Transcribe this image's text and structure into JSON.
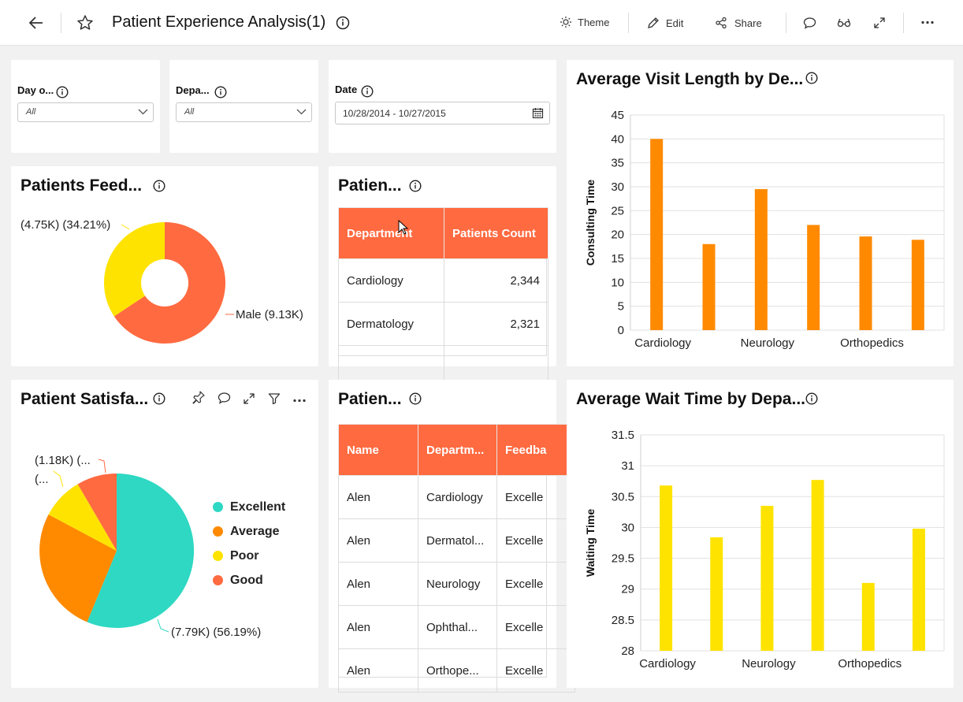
{
  "header": {
    "title": "Patient Experience Analysis(1)",
    "theme_label": "Theme",
    "edit_label": "Edit",
    "share_label": "Share"
  },
  "filters": {
    "day": {
      "label": "Day o...",
      "value": "All"
    },
    "department": {
      "label": "Depa...",
      "value": "All"
    },
    "date": {
      "label": "Date",
      "value": "10/28/2014 - 10/27/2015"
    }
  },
  "feedback_pie": {
    "title": "Patients Feed...",
    "labels": [
      "(4.75K) (34.21%)",
      "Male (9.13K)"
    ],
    "colors": {
      "female": "#ffe300",
      "male": "#ff6a40"
    }
  },
  "patients_count_table": {
    "title": "Patien...",
    "headers": [
      "Department",
      "Patients Count"
    ],
    "rows": [
      [
        "Cardiology",
        "2,344"
      ],
      [
        "Dermatology",
        "2,321"
      ]
    ]
  },
  "visit_length_chart": {
    "title": "Average Visit Length by De...",
    "chart_data": {
      "type": "bar",
      "title": "Average Visit Length by De...",
      "xlabel": "",
      "ylabel": "Consulting Time",
      "ylim": [
        0,
        45
      ],
      "yticks": [
        "0",
        "5",
        "10",
        "15",
        "20",
        "25",
        "30",
        "35",
        "40",
        "45"
      ],
      "x_tick_labels": [
        "Cardiology",
        "Neurology",
        "Orthopedics"
      ],
      "values": [
        40,
        18,
        29.5,
        22,
        19.6,
        18.9
      ],
      "color": "#ff8a00"
    }
  },
  "satisfaction_pie": {
    "title": "Patient Satisfa...",
    "labels": [
      "(1.18K) (...",
      "(...",
      "(7.79K) (56.19%)"
    ],
    "legend": [
      {
        "name": "Excellent",
        "color": "#2ed8c3"
      },
      {
        "name": "Average",
        "color": "#ff8a00"
      },
      {
        "name": "Poor",
        "color": "#ffe300"
      },
      {
        "name": "Good",
        "color": "#ff6a40"
      }
    ]
  },
  "patients_table": {
    "title": "Patien...",
    "headers": [
      "Name",
      "Departm...",
      "Feedba"
    ],
    "rows": [
      [
        "Alen",
        "Cardiology",
        "Excelle"
      ],
      [
        "Alen",
        "Dermatol...",
        "Excelle"
      ],
      [
        "Alen",
        "Neurology",
        "Excelle"
      ],
      [
        "Alen",
        "Ophthal...",
        "Excelle"
      ],
      [
        "Alen",
        "Orthope...",
        "Excelle"
      ]
    ]
  },
  "wait_time_chart": {
    "title": "Average Wait Time by Depa...",
    "chart_data": {
      "type": "bar",
      "title": "Average Wait Time by Depa...",
      "xlabel": "",
      "ylabel": "Waiting Time",
      "ylim": [
        28,
        31.5
      ],
      "yticks": [
        "28",
        "28.5",
        "29",
        "29.5",
        "30",
        "30.5",
        "31",
        "31.5"
      ],
      "x_tick_labels": [
        "Cardiology",
        "Neurology",
        "Orthopedics"
      ],
      "values": [
        30.68,
        29.84,
        30.35,
        30.77,
        29.1,
        29.98
      ],
      "color": "#ffe300"
    }
  }
}
